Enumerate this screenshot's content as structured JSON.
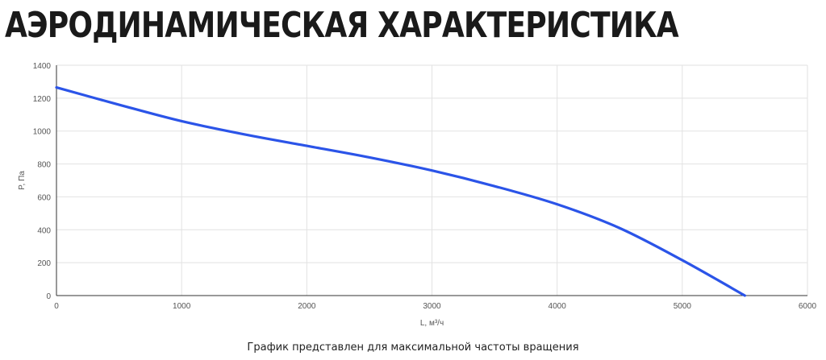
{
  "page": {
    "title": "АЭРОДИНАМИЧЕСКАЯ ХАРАКТЕРИСТИКА",
    "footnote": "График представлен для максимальной частоты вращения"
  },
  "chart_data": {
    "type": "line",
    "xlabel": "L, м³/ч",
    "ylabel": "P, Па",
    "xlim": [
      0,
      6000
    ],
    "ylim": [
      0,
      1400
    ],
    "xticks": [
      0,
      1000,
      2000,
      3000,
      4000,
      5000,
      6000
    ],
    "yticks": [
      0,
      200,
      400,
      600,
      800,
      1000,
      1200,
      1400
    ],
    "grid": true,
    "series": [
      {
        "color": "#2b54e8",
        "x": [
          0,
          500,
          1000,
          1500,
          2000,
          2500,
          3000,
          3500,
          4000,
          4500,
          5000,
          5500
        ],
        "y": [
          1265,
          1160,
          1060,
          980,
          910,
          840,
          760,
          665,
          555,
          410,
          215,
          0
        ]
      }
    ]
  }
}
